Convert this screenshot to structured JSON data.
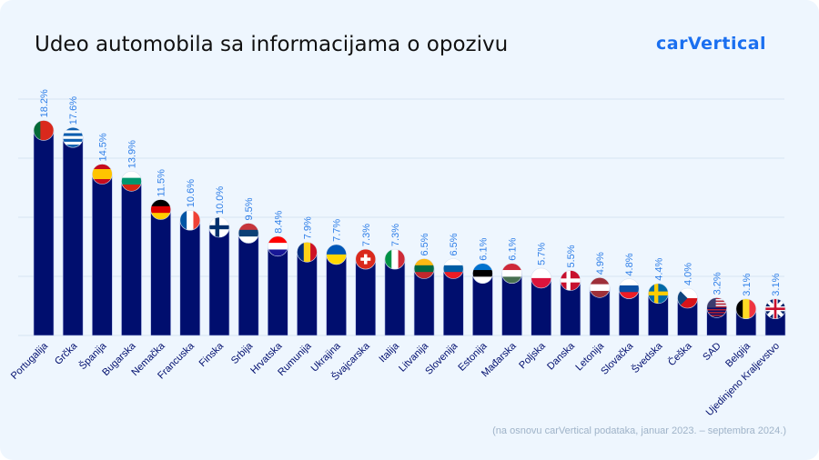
{
  "title": "Udeo automobila sa informacijama o opozivu",
  "logo": "carVertical",
  "note": "(na osnovu carVertical podataka, januar 2023. – septembra 2024.)",
  "colors": {
    "bar": "#000e6e",
    "label": "#2f7fe8",
    "grid": "#d6e4f2",
    "background": "#eef6fe"
  },
  "chart_data": {
    "type": "bar",
    "title": "Udeo automobila sa informacijama o opozivu",
    "categories": [
      "Portugalija",
      "Grčka",
      "Španija",
      "Bugarska",
      "Nemačka",
      "Francuska",
      "Finska",
      "Srbija",
      "Hrvatska",
      "Rumunija",
      "Ukrajina",
      "Švajcarska",
      "Italija",
      "Litvanija",
      "Slovenija",
      "Estonija",
      "Mađarska",
      "Poljska",
      "Danska",
      "Letonija",
      "Slovačka",
      "Švedska",
      "Češka",
      "SAD",
      "Belgija",
      "Ujedinjeno Kraljevstvo"
    ],
    "values": [
      18.2,
      17.6,
      14.5,
      13.9,
      11.5,
      10.6,
      10.0,
      9.5,
      8.4,
      7.9,
      7.7,
      7.3,
      7.3,
      6.5,
      6.5,
      6.1,
      6.1,
      5.7,
      5.5,
      4.9,
      4.8,
      4.4,
      4.0,
      3.2,
      3.1,
      3.1
    ],
    "data_labels": [
      "18.2%",
      "17.6%",
      "14.5%",
      "13.9%",
      "11.5%",
      "10.6%",
      "10.0%",
      "9.5%",
      "8.4%",
      "7.9%",
      "7.7%",
      "7.3%",
      "7.3%",
      "6.5%",
      "6.5%",
      "6.1%",
      "6.1%",
      "5.7%",
      "5.5%",
      "4.9%",
      "4.8%",
      "4.4%",
      "4.0%",
      "3.2%",
      "3.1%",
      "3.1%"
    ],
    "flag_icons": [
      "portugal-flag",
      "greece-flag",
      "spain-flag",
      "bulgaria-flag",
      "germany-flag",
      "france-flag",
      "finland-flag",
      "serbia-flag",
      "croatia-flag",
      "romania-flag",
      "ukraine-flag",
      "switzerland-flag",
      "italy-flag",
      "lithuania-flag",
      "slovenia-flag",
      "estonia-flag",
      "hungary-flag",
      "poland-flag",
      "denmark-flag",
      "latvia-flag",
      "slovakia-flag",
      "sweden-flag",
      "czechia-flag",
      "usa-flag",
      "belgium-flag",
      "uk-flag"
    ],
    "ylim": [
      0,
      20
    ],
    "grid": true,
    "y_axis_labels_visible": false
  }
}
